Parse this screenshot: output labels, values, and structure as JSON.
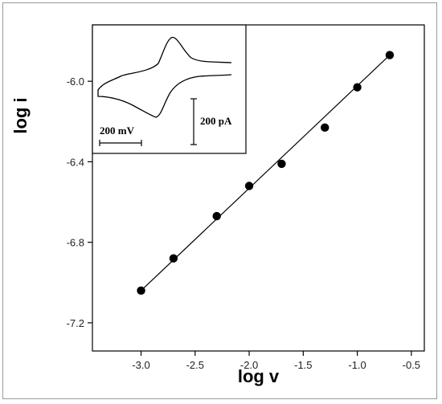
{
  "chart_data": {
    "type": "scatter",
    "xlabel": "log v",
    "ylabel": "log i",
    "xlim": [
      -3.45,
      -0.38
    ],
    "ylim": [
      -7.34,
      -5.72
    ],
    "x_ticks": [
      "-3.0",
      "-2.5",
      "-2.0",
      "-1.5",
      "-1.0",
      "-0.5"
    ],
    "x_tick_values": [
      -3.0,
      -2.5,
      -2.0,
      -1.5,
      -1.0,
      -0.5
    ],
    "y_ticks": [
      "-6.0",
      "-6.4",
      "-6.8",
      "-7.2"
    ],
    "y_tick_values": [
      -6.0,
      -6.4,
      -6.8,
      -7.2
    ],
    "series": [
      {
        "x": [
          -3.0,
          -2.7,
          -2.3,
          -2.0,
          -1.7,
          -1.3,
          -1.0,
          -0.7
        ],
        "y": [
          -7.04,
          -6.88,
          -6.67,
          -6.52,
          -6.41,
          -6.23,
          -6.03,
          -5.87
        ]
      }
    ],
    "fit_line": {
      "x": [
        -3.0,
        -0.7
      ],
      "y": [
        -7.04,
        -5.87
      ]
    },
    "inset": {
      "type": "cyclic voltammogram",
      "x_scale_label": "200 mV",
      "y_scale_label": "200 pA"
    }
  }
}
